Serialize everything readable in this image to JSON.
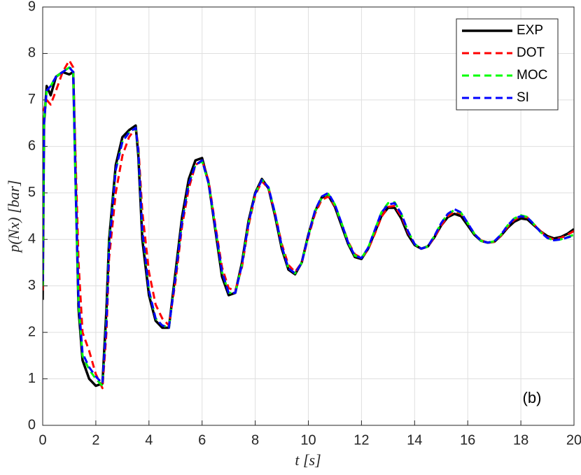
{
  "chart_data": {
    "type": "line",
    "xlabel": "t [s]",
    "ylabel": "p(Nx) [bar]",
    "annotation": "(b)",
    "x": [
      0,
      0.05,
      0.15,
      0.3,
      0.5,
      0.75,
      1,
      1.15,
      1.25,
      1.35,
      1.5,
      1.75,
      2,
      2.25,
      2.4,
      2.5,
      2.75,
      3,
      3.25,
      3.5,
      3.6,
      3.75,
      4,
      4.25,
      4.5,
      4.75,
      5,
      5.25,
      5.5,
      5.75,
      6,
      6.25,
      6.5,
      6.75,
      7,
      7.25,
      7.5,
      7.75,
      8,
      8.25,
      8.5,
      8.75,
      9,
      9.25,
      9.5,
      9.75,
      10,
      10.25,
      10.5,
      10.75,
      11,
      11.25,
      11.5,
      11.75,
      12,
      12.25,
      12.5,
      12.75,
      13,
      13.25,
      13.5,
      13.75,
      14,
      14.25,
      14.5,
      14.75,
      15,
      15.25,
      15.5,
      15.75,
      16,
      16.25,
      16.5,
      16.75,
      17,
      17.25,
      17.5,
      17.75,
      18,
      18.25,
      18.5,
      18.75,
      19,
      19.25,
      19.5,
      19.75,
      20
    ],
    "series": [
      {
        "name": "EXP",
        "color": "#000000",
        "linestyle": "solid",
        "values": [
          2.7,
          6.5,
          7.3,
          7.1,
          7.5,
          7.6,
          7.55,
          7.6,
          5.0,
          2.5,
          1.4,
          1.0,
          0.85,
          0.9,
          2.5,
          4.0,
          5.6,
          6.2,
          6.35,
          6.45,
          5.8,
          4.0,
          2.8,
          2.25,
          2.1,
          2.1,
          3.3,
          4.5,
          5.3,
          5.7,
          5.75,
          5.2,
          4.2,
          3.2,
          2.8,
          2.85,
          3.5,
          4.4,
          5.0,
          5.3,
          5.1,
          4.5,
          3.8,
          3.35,
          3.25,
          3.5,
          4.1,
          4.6,
          4.9,
          4.95,
          4.7,
          4.3,
          3.9,
          3.62,
          3.58,
          3.8,
          4.15,
          4.5,
          4.68,
          4.68,
          4.45,
          4.1,
          3.88,
          3.8,
          3.85,
          4.05,
          4.3,
          4.48,
          4.55,
          4.5,
          4.3,
          4.1,
          3.97,
          3.93,
          3.95,
          4.08,
          4.25,
          4.38,
          4.45,
          4.43,
          4.3,
          4.17,
          4.07,
          4.02,
          4.05,
          4.12,
          4.22
        ]
      },
      {
        "name": "DOT",
        "color": "#ff0000",
        "linestyle": "dashed",
        "values": [
          2.9,
          6.8,
          7.0,
          6.9,
          7.2,
          7.6,
          7.85,
          7.7,
          5.5,
          3.5,
          2.0,
          1.6,
          1.1,
          0.8,
          2.0,
          3.6,
          5.0,
          5.8,
          6.2,
          6.4,
          6.0,
          4.6,
          3.3,
          2.6,
          2.3,
          2.15,
          3.1,
          4.3,
          5.1,
          5.6,
          5.7,
          5.25,
          4.3,
          3.4,
          2.95,
          2.9,
          3.4,
          4.3,
          4.95,
          5.25,
          5.1,
          4.55,
          3.9,
          3.45,
          3.3,
          3.5,
          4.05,
          4.55,
          4.85,
          4.92,
          4.72,
          4.35,
          3.95,
          3.68,
          3.6,
          3.78,
          4.12,
          4.48,
          4.7,
          4.72,
          4.5,
          4.15,
          3.9,
          3.8,
          3.85,
          4.05,
          4.3,
          4.5,
          4.6,
          4.55,
          4.35,
          4.12,
          3.98,
          3.93,
          3.95,
          4.08,
          4.27,
          4.42,
          4.5,
          4.47,
          4.32,
          4.17,
          4.05,
          4.0,
          4.03,
          4.1,
          4.18
        ]
      },
      {
        "name": "MOC",
        "color": "#00ff00",
        "linestyle": "dashed",
        "values": [
          3.0,
          6.6,
          7.2,
          7.3,
          7.5,
          7.6,
          7.7,
          7.65,
          4.8,
          2.6,
          1.5,
          1.2,
          1.0,
          0.85,
          2.3,
          3.9,
          5.5,
          6.1,
          6.3,
          6.4,
          5.9,
          4.2,
          2.9,
          2.3,
          2.15,
          2.1,
          3.2,
          4.4,
          5.2,
          5.6,
          5.68,
          5.2,
          4.25,
          3.3,
          2.85,
          2.85,
          3.45,
          4.35,
          4.98,
          5.28,
          5.12,
          4.55,
          3.85,
          3.38,
          3.27,
          3.5,
          4.08,
          4.6,
          4.9,
          4.98,
          4.75,
          4.35,
          3.93,
          3.65,
          3.6,
          3.82,
          4.2,
          4.58,
          4.78,
          4.8,
          4.55,
          4.18,
          3.9,
          3.8,
          3.85,
          4.08,
          4.35,
          4.55,
          4.63,
          4.57,
          4.35,
          4.12,
          3.97,
          3.93,
          3.96,
          4.1,
          4.3,
          4.45,
          4.52,
          4.48,
          4.32,
          4.15,
          4.03,
          3.98,
          4.0,
          4.05,
          4.1
        ]
      },
      {
        "name": "SI",
        "color": "#0000ff",
        "linestyle": "dashed",
        "values": [
          3.1,
          6.5,
          7.2,
          7.3,
          7.5,
          7.6,
          7.7,
          7.6,
          4.9,
          2.7,
          1.55,
          1.25,
          1.05,
          0.9,
          2.2,
          3.8,
          5.5,
          6.1,
          6.3,
          6.4,
          5.9,
          4.2,
          2.9,
          2.3,
          2.15,
          2.1,
          3.2,
          4.4,
          5.2,
          5.6,
          5.7,
          5.2,
          4.25,
          3.3,
          2.85,
          2.85,
          3.45,
          4.35,
          4.98,
          5.28,
          5.12,
          4.55,
          3.85,
          3.38,
          3.27,
          3.5,
          4.08,
          4.62,
          4.92,
          5.0,
          4.75,
          4.35,
          3.93,
          3.65,
          3.6,
          3.82,
          4.2,
          4.58,
          4.75,
          4.78,
          4.55,
          4.18,
          3.9,
          3.8,
          3.85,
          4.08,
          4.35,
          4.55,
          4.65,
          4.58,
          4.35,
          4.12,
          3.97,
          3.93,
          3.96,
          4.1,
          4.3,
          4.45,
          4.5,
          4.47,
          4.32,
          4.15,
          4.03,
          3.98,
          4.0,
          4.04,
          4.08
        ]
      }
    ],
    "xlim": [
      0,
      20
    ],
    "xticks": [
      0,
      2,
      4,
      6,
      8,
      10,
      12,
      14,
      16,
      18,
      20
    ],
    "ylim": [
      0,
      9
    ],
    "yticks": [
      0,
      1,
      2,
      3,
      4,
      5,
      6,
      7,
      8,
      9
    ],
    "grid": true,
    "legend": "upper right"
  }
}
